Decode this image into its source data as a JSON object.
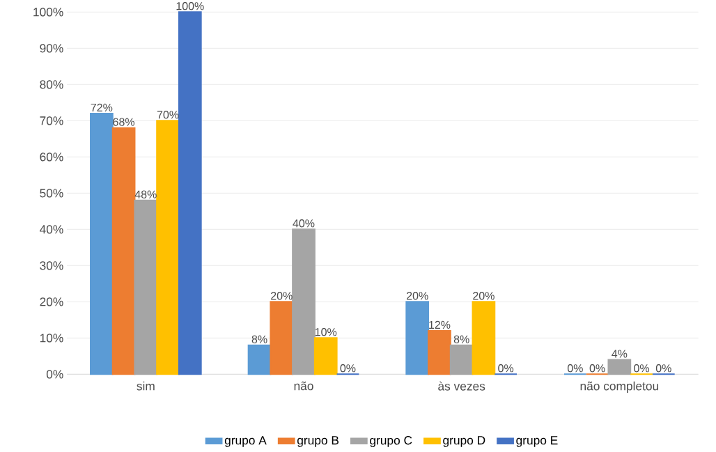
{
  "chart_data": {
    "type": "bar",
    "categories": [
      "sim",
      "não",
      "às vezes",
      "não completou"
    ],
    "series": [
      {
        "name": "grupo A",
        "color": "#5b9bd5",
        "values": [
          72,
          8,
          20,
          0
        ],
        "value_labels": [
          "72%",
          "8%",
          "20%",
          "0%"
        ]
      },
      {
        "name": "grupo B",
        "color": "#ed7d31",
        "values": [
          68,
          20,
          12,
          0
        ],
        "value_labels": [
          "68%",
          "20%",
          "12%",
          "0%"
        ]
      },
      {
        "name": "grupo C",
        "color": "#a5a5a5",
        "values": [
          48,
          40,
          8,
          4
        ],
        "value_labels": [
          "48%",
          "40%",
          "8%",
          "4%"
        ]
      },
      {
        "name": "grupo D",
        "color": "#ffc000",
        "values": [
          70,
          10,
          20,
          0
        ],
        "value_labels": [
          "70%",
          "10%",
          "20%",
          "0%"
        ]
      },
      {
        "name": "grupo E",
        "color": "#4472c4",
        "values": [
          100,
          0,
          0,
          0
        ],
        "value_labels": [
          "100%",
          "0%",
          "0%",
          "0%"
        ]
      }
    ],
    "ylim": [
      0,
      100
    ],
    "yticks": [
      {
        "value": 0,
        "label": "0%"
      },
      {
        "value": 10,
        "label": "10%"
      },
      {
        "value": 20,
        "label": "20%"
      },
      {
        "value": 30,
        "label": "30%"
      },
      {
        "value": 40,
        "label": "40%"
      },
      {
        "value": 50,
        "label": "50%"
      },
      {
        "value": 60,
        "label": "60%"
      },
      {
        "value": 70,
        "label": "70%"
      },
      {
        "value": 80,
        "label": "80%"
      },
      {
        "value": 90,
        "label": "90%"
      },
      {
        "value": 100,
        "label": "100%"
      }
    ],
    "grid": "y",
    "legend": "bottom"
  }
}
